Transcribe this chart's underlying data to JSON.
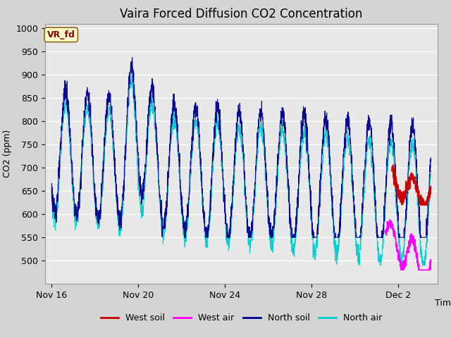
{
  "title": "Vaira Forced Diffusion CO2 Concentration",
  "xlabel": "Time",
  "ylabel": "CO2 (ppm)",
  "ylim": [
    450,
    1010
  ],
  "yticks": [
    500,
    550,
    600,
    650,
    700,
    750,
    800,
    850,
    900,
    950,
    1000
  ],
  "fig_bg_color": "#d4d4d4",
  "plot_bg_color": "#e8e8e8",
  "legend_labels": [
    "West soil",
    "West air",
    "North soil",
    "North air"
  ],
  "annotation_text": "VR_fd",
  "annotation_bg": "#ffffcc",
  "annotation_border": "#8b6914",
  "north_soil_color": "#00008b",
  "north_air_color": "#00cccc",
  "west_soil_color": "#cc0000",
  "west_air_color": "#ff00ff",
  "grid_color": "#ffffff",
  "title_fontsize": 12,
  "xtick_positions": [
    0,
    4,
    8,
    12,
    16
  ],
  "xtick_labels": [
    "Nov 16",
    "Nov 20",
    "Nov 24",
    "Nov 28",
    "Dec 2"
  ],
  "xlim": [
    -0.3,
    17.8
  ]
}
